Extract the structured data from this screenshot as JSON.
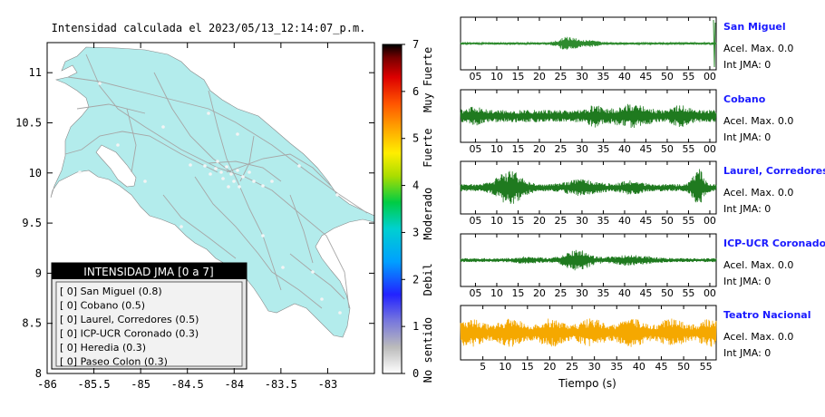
{
  "map": {
    "title": "Intensidad calculada el 2023/05/13_12:14:07_p.m.",
    "x_ticks": [
      "-86",
      "-85.5",
      "-85",
      "-84.5",
      "-84",
      "-83.5",
      "-83"
    ],
    "y_ticks": [
      "11",
      "10.5",
      "10",
      "9.5",
      "9",
      "8.5",
      "8"
    ],
    "land_color": "#b3ecec",
    "legend": {
      "title": "INTENSIDAD JMA [0 a 7]",
      "items": [
        "[ 0] San Miguel (0.8)",
        "[ 0] Cobano (0.5)",
        "[ 0] Laurel, Corredores (0.5)",
        "[ 0] ICP-UCR Coronado (0.3)",
        "[ 0] Heredia (0.3)",
        "[ 0] Paseo Colon (0.3)"
      ]
    }
  },
  "colorbar": {
    "ticks": [
      "7",
      "6",
      "5",
      "4",
      "3",
      "2",
      "1",
      "0"
    ],
    "labels": [
      "Muy Fuerte",
      "Fuerte",
      "Moderado",
      "Debil",
      "No sentido"
    ]
  },
  "chart_data": [
    {
      "type": "heatmap",
      "title": "Intensidad calculada el 2023/05/13_12:14:07_p.m.",
      "xlim": [
        -86,
        -82.5
      ],
      "ylim": [
        8,
        11.3
      ],
      "colorbar_range": [
        0,
        7
      ],
      "colorbar_labels": [
        "Muy Fuerte",
        "Fuerte",
        "Moderado",
        "Debil",
        "No sentido"
      ]
    },
    {
      "type": "line",
      "xlabel": "Tiempo (s)",
      "xtick_labels_top": [
        "05",
        "10",
        "15",
        "20",
        "25",
        "30",
        "35",
        "40",
        "45",
        "50",
        "55",
        "00"
      ],
      "xtick_labels_bottom": [
        "5",
        "10",
        "15",
        "20",
        "25",
        "30",
        "35",
        "40",
        "45",
        "50",
        "55"
      ],
      "stations": [
        {
          "name": "San Miguel",
          "acel": "Acel. Max. 0.0",
          "int": "Int JMA: 0",
          "color": "#2e8b2e"
        },
        {
          "name": "Cobano",
          "acel": "Acel. Max. 0.0",
          "int": "Int JMA: 0",
          "color": "#1f7a1f"
        },
        {
          "name": "Laurel, Corredores",
          "acel": "Acel. Max. 0.0",
          "int": "Int JMA: 0",
          "color": "#1f7a1f"
        },
        {
          "name": "ICP-UCR Coronado",
          "acel": "Acel. Max. 0.0",
          "int": "Int JMA: 0",
          "color": "#1f7a1f"
        },
        {
          "name": "Teatro Nacional",
          "acel": "Acel. Max. 0.0",
          "int": "Int JMA: 0",
          "color": "#f5a800"
        }
      ]
    }
  ]
}
